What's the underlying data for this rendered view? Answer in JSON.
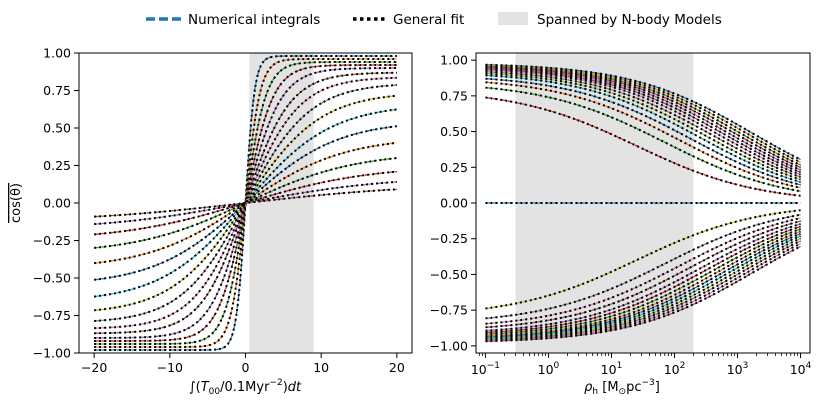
{
  "legend": [
    {
      "label": "Numerical integrals",
      "style": "dashed",
      "color": "#1f77b4"
    },
    {
      "label": "General fit",
      "style": "dotted",
      "color": "#000000"
    },
    {
      "label": "Spanned by N-body Models",
      "style": "patch",
      "color": "#e3e3e3"
    }
  ],
  "colors": [
    "#1f77b4",
    "#ff7f0e",
    "#2ca02c",
    "#d62728",
    "#9467bd",
    "#8c564b",
    "#e377c2",
    "#7f7f7f",
    "#bcbd22",
    "#17becf"
  ],
  "chart_data": [
    {
      "type": "line",
      "panel": "left",
      "ylabel": "cos(θ) (overlined)",
      "xlabel": "∫(T00/0.1Myr^-2)dt",
      "xlim": [
        -22,
        22
      ],
      "ylim": [
        -1.0,
        1.0
      ],
      "xticks": [
        -20,
        -10,
        0,
        10,
        20
      ],
      "xtick_labels": [
        "−20",
        "−10",
        "0",
        "10",
        "20"
      ],
      "yticks": [
        -1.0,
        -0.75,
        -0.5,
        -0.25,
        0.0,
        0.25,
        0.5,
        0.75,
        1.0
      ],
      "ytick_labels": [
        "−1.00",
        "−0.75",
        "−0.50",
        "−0.25",
        "0.00",
        "0.25",
        "0.50",
        "0.75",
        "1.00"
      ],
      "shaded_x": [
        0.5,
        9.0
      ],
      "x_range": [
        -20,
        20
      ],
      "series_form": "y = A * tanh(x / s)",
      "amplitudes": [
        0.98,
        0.96,
        0.94,
        0.92,
        0.9,
        0.87,
        0.84,
        0.8,
        0.74,
        0.66,
        0.55,
        0.44,
        0.34,
        0.25,
        0.18,
        0.13
      ],
      "scales": [
        1.2,
        1.9,
        2.7,
        3.6,
        4.6,
        5.8,
        7.0,
        8.4,
        9.8,
        11.2,
        12.0,
        13.0,
        14.5,
        16.5,
        19.0,
        23.0
      ]
    },
    {
      "type": "line",
      "panel": "right",
      "xlabel": "ρh [M⊙pc^-3]",
      "xscale": "log",
      "xlim_log10": [
        -1.15,
        4.15
      ],
      "ylim": [
        -1.05,
        1.05
      ],
      "xticks_log10": [
        -1,
        0,
        1,
        2,
        3,
        4
      ],
      "xtick_labels": [
        [
          "10",
          "−1"
        ],
        [
          "10",
          "0"
        ],
        [
          "10",
          "1"
        ],
        [
          "10",
          "2"
        ],
        [
          "10",
          "3"
        ],
        [
          "10",
          "4"
        ]
      ],
      "yticks": [
        -1.0,
        -0.75,
        -0.5,
        -0.25,
        0.0,
        0.25,
        0.5,
        0.75,
        1.0
      ],
      "ytick_labels": [
        "−1.00",
        "−0.75",
        "−0.50",
        "−0.25",
        "0.00",
        "0.25",
        "0.50",
        "0.75",
        "1.00"
      ],
      "shaded_x": [
        0.3,
        200
      ],
      "x_range": [
        0.1,
        10000
      ],
      "series_form": "y = ±A / (1 + (rho / rho_c)^p)",
      "amplitudes": [
        0.98,
        0.975,
        0.97,
        0.965,
        0.96,
        0.955,
        0.95,
        0.94,
        0.93,
        0.92,
        0.9,
        0.88,
        0.85,
        0.8
      ],
      "rho_c": [
        1700,
        1400,
        1150,
        950,
        780,
        640,
        520,
        420,
        330,
        250,
        180,
        120,
        70,
        25
      ],
      "power": 0.45,
      "zero_line": true,
      "annotations": []
    }
  ]
}
